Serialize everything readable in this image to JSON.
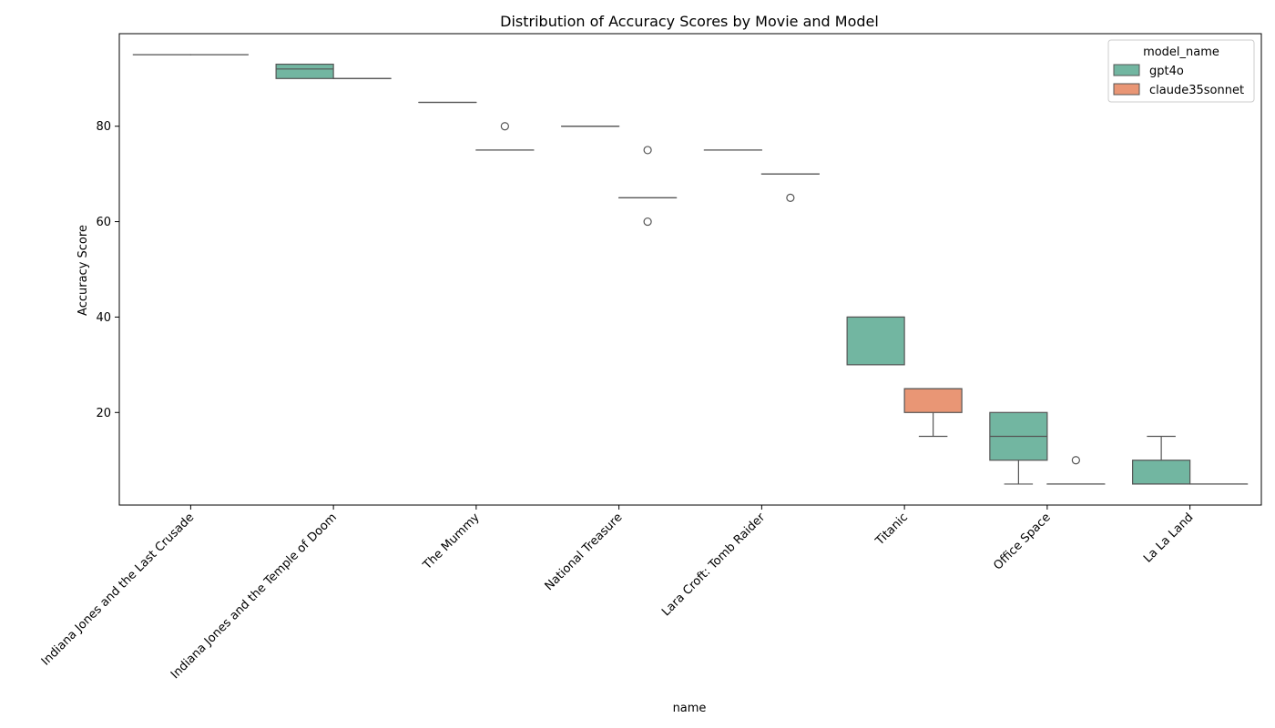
{
  "chart_data": {
    "type": "box",
    "title": "Distribution of Accuracy Scores by Movie and Model",
    "xlabel": "name",
    "ylabel": "Accuracy Score",
    "ylim": [
      0.6,
      99.4
    ],
    "yticks": [
      20,
      40,
      60,
      80
    ],
    "grid": false,
    "legend_title": "model_name",
    "legend_position": "top-right",
    "categories": [
      "Indiana Jones and the Last Crusade",
      "Indiana Jones and the Temple of Doom",
      "The Mummy",
      "National Treasure",
      "Lara Croft: Tomb Raider",
      "Titanic",
      "Office Space",
      "La La Land"
    ],
    "series": [
      {
        "name": "gpt4o",
        "color": "#72b6a1",
        "boxes": [
          {
            "whisker_low": 95,
            "q1": 95,
            "median": 95,
            "q3": 95,
            "whisker_high": 95,
            "outliers": []
          },
          {
            "whisker_low": 90,
            "q1": 90,
            "median": 92,
            "q3": 93,
            "whisker_high": 93,
            "outliers": []
          },
          {
            "whisker_low": 85,
            "q1": 85,
            "median": 85,
            "q3": 85,
            "whisker_high": 85,
            "outliers": []
          },
          {
            "whisker_low": 80,
            "q1": 80,
            "median": 80,
            "q3": 80,
            "whisker_high": 80,
            "outliers": []
          },
          {
            "whisker_low": 75,
            "q1": 75,
            "median": 75,
            "q3": 75,
            "whisker_high": 75,
            "outliers": []
          },
          {
            "whisker_low": 30,
            "q1": 30,
            "median": 40,
            "q3": 40,
            "whisker_high": 40,
            "outliers": []
          },
          {
            "whisker_low": 5,
            "q1": 10,
            "median": 15,
            "q3": 20,
            "whisker_high": 20,
            "outliers": []
          },
          {
            "whisker_low": 5,
            "q1": 5,
            "median": 5,
            "q3": 10,
            "whisker_high": 15,
            "outliers": []
          }
        ]
      },
      {
        "name": "claude35sonnet",
        "color": "#e99675",
        "boxes": [
          {
            "whisker_low": 95,
            "q1": 95,
            "median": 95,
            "q3": 95,
            "whisker_high": 95,
            "outliers": []
          },
          {
            "whisker_low": 90,
            "q1": 90,
            "median": 90,
            "q3": 90,
            "whisker_high": 90,
            "outliers": []
          },
          {
            "whisker_low": 75,
            "q1": 75,
            "median": 75,
            "q3": 75,
            "whisker_high": 75,
            "outliers": [
              80
            ]
          },
          {
            "whisker_low": 65,
            "q1": 65,
            "median": 65,
            "q3": 65,
            "whisker_high": 65,
            "outliers": [
              75,
              60
            ]
          },
          {
            "whisker_low": 70,
            "q1": 70,
            "median": 70,
            "q3": 70,
            "whisker_high": 70,
            "outliers": [
              65
            ]
          },
          {
            "whisker_low": 15,
            "q1": 20,
            "median": 25,
            "q3": 25,
            "whisker_high": 25,
            "outliers": []
          },
          {
            "whisker_low": 5,
            "q1": 5,
            "median": 5,
            "q3": 5,
            "whisker_high": 5,
            "outliers": [
              10
            ]
          },
          {
            "whisker_low": 5,
            "q1": 5,
            "median": 5,
            "q3": 5,
            "whisker_high": 5,
            "outliers": []
          }
        ]
      }
    ]
  }
}
